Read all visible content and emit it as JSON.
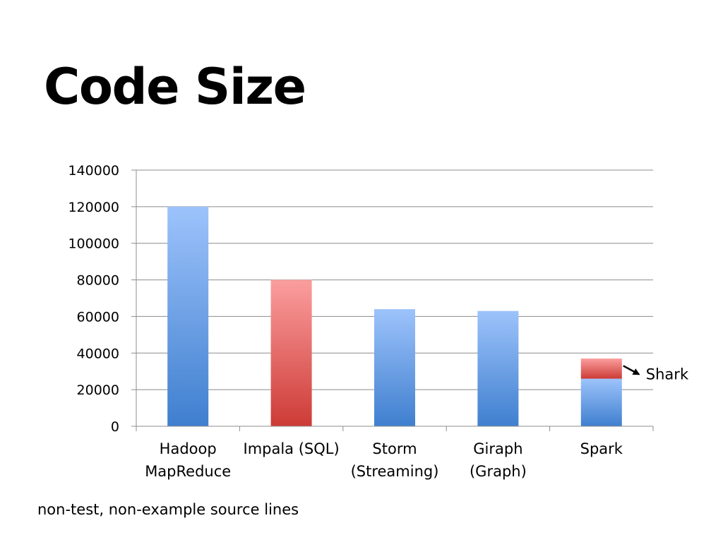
{
  "slide": {
    "title": "Code Size",
    "footnote": "non-test, non-example source lines"
  },
  "colors": {
    "blue_top": "#9dc3fb",
    "blue_bottom": "#3f7fcf",
    "red_top": "#fb9e9e",
    "red_bottom": "#cd3b36",
    "gridline": "#8c8c8c",
    "axis": "#8c8c8c"
  },
  "chart_data": {
    "type": "bar",
    "stacked": true,
    "categories": [
      [
        "Hadoop",
        "MapReduce"
      ],
      [
        "Impala (SQL)"
      ],
      [
        "Storm",
        "(Streaming)"
      ],
      [
        "Giraph",
        "(Graph)"
      ],
      [
        "Spark"
      ]
    ],
    "series": [
      {
        "color": "blue",
        "values": [
          120000,
          0,
          64000,
          63000,
          26000
        ]
      },
      {
        "color": "red",
        "values": [
          0,
          80000,
          0,
          0,
          11000
        ]
      }
    ],
    "ylim": [
      0,
      140000
    ],
    "yticks": [
      "0",
      "20000",
      "40000",
      "60000",
      "80000",
      "100000",
      "120000",
      "140000"
    ],
    "grid": true,
    "legend": "none",
    "annotations": [
      {
        "text": "Shark",
        "target_category": "Spark",
        "target_series": 1
      }
    ]
  }
}
